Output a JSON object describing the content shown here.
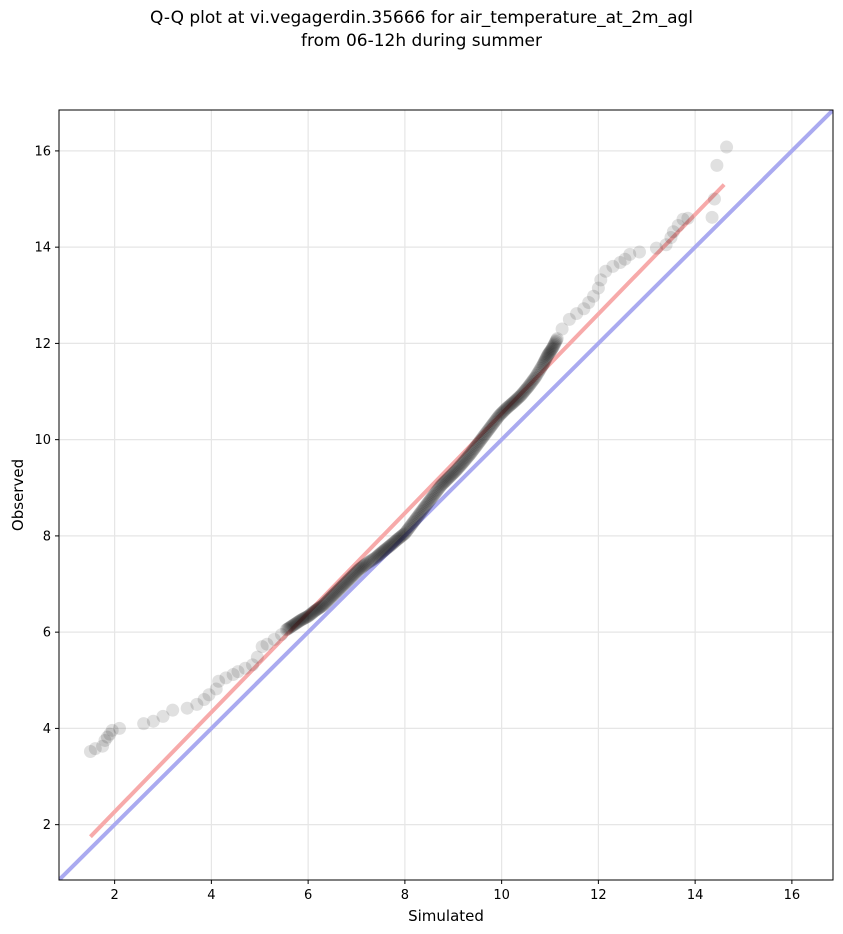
{
  "chart_data": {
    "type": "scatter",
    "title_line1": "Q-Q plot at vi.vegagerdin.35666 for air_temperature_at_2m_agl",
    "title_line2": "from 06-12h during summer",
    "xlabel": "Simulated",
    "ylabel": "Observed",
    "xlim": [
      0.85,
      16.85
    ],
    "ylim": [
      0.85,
      16.85
    ],
    "xticks": [
      2,
      4,
      6,
      8,
      10,
      12,
      14,
      16
    ],
    "yticks": [
      2,
      4,
      6,
      8,
      10,
      12,
      14,
      16
    ],
    "grid": true,
    "identity_line": {
      "color": "#aaaaf0",
      "from": [
        0.85,
        0.85
      ],
      "to": [
        16.85,
        16.85
      ]
    },
    "fit_line": {
      "color": "#f7aaaa",
      "from": [
        1.5,
        1.75
      ],
      "to": [
        14.6,
        15.3
      ]
    },
    "qq_points": [
      [
        1.5,
        3.52
      ],
      [
        1.6,
        3.58
      ],
      [
        1.75,
        3.63
      ],
      [
        1.8,
        3.75
      ],
      [
        1.85,
        3.82
      ],
      [
        1.9,
        3.88
      ],
      [
        1.95,
        3.96
      ],
      [
        2.1,
        4.0
      ],
      [
        2.6,
        4.1
      ],
      [
        2.8,
        4.15
      ],
      [
        3.0,
        4.25
      ],
      [
        3.2,
        4.38
      ],
      [
        3.5,
        4.42
      ],
      [
        3.7,
        4.5
      ],
      [
        3.85,
        4.6
      ],
      [
        3.95,
        4.7
      ],
      [
        4.1,
        4.82
      ],
      [
        4.15,
        4.98
      ],
      [
        4.3,
        5.05
      ],
      [
        4.45,
        5.12
      ],
      [
        4.55,
        5.18
      ],
      [
        4.7,
        5.25
      ],
      [
        4.85,
        5.32
      ],
      [
        4.95,
        5.48
      ],
      [
        5.05,
        5.7
      ],
      [
        5.15,
        5.75
      ],
      [
        5.3,
        5.85
      ],
      [
        5.45,
        5.95
      ],
      [
        5.55,
        6.05
      ],
      [
        5.7,
        6.15
      ],
      [
        5.85,
        6.25
      ],
      [
        6.0,
        6.33
      ],
      [
        6.15,
        6.45
      ],
      [
        6.3,
        6.55
      ],
      [
        6.45,
        6.7
      ],
      [
        6.6,
        6.85
      ],
      [
        6.75,
        7.0
      ],
      [
        6.9,
        7.15
      ],
      [
        7.05,
        7.3
      ],
      [
        7.2,
        7.42
      ],
      [
        7.4,
        7.55
      ],
      [
        7.55,
        7.68
      ],
      [
        7.7,
        7.8
      ],
      [
        7.85,
        7.93
      ],
      [
        8.0,
        8.05
      ],
      [
        8.15,
        8.25
      ],
      [
        8.3,
        8.45
      ],
      [
        8.45,
        8.65
      ],
      [
        8.6,
        8.85
      ],
      [
        8.75,
        9.05
      ],
      [
        8.9,
        9.2
      ],
      [
        9.05,
        9.35
      ],
      [
        9.2,
        9.52
      ],
      [
        9.35,
        9.7
      ],
      [
        9.5,
        9.9
      ],
      [
        9.65,
        10.1
      ],
      [
        9.8,
        10.3
      ],
      [
        9.95,
        10.5
      ],
      [
        10.1,
        10.65
      ],
      [
        10.25,
        10.78
      ],
      [
        10.4,
        10.92
      ],
      [
        10.55,
        11.1
      ],
      [
        10.7,
        11.3
      ],
      [
        10.85,
        11.55
      ],
      [
        10.95,
        11.75
      ],
      [
        11.05,
        11.9
      ],
      [
        11.15,
        12.1
      ],
      [
        11.25,
        12.3
      ],
      [
        11.4,
        12.5
      ],
      [
        11.55,
        12.62
      ],
      [
        11.7,
        12.72
      ],
      [
        11.8,
        12.85
      ],
      [
        11.9,
        12.98
      ],
      [
        12.0,
        13.15
      ],
      [
        12.05,
        13.32
      ],
      [
        12.15,
        13.5
      ],
      [
        12.3,
        13.6
      ],
      [
        12.45,
        13.68
      ],
      [
        12.55,
        13.75
      ],
      [
        12.65,
        13.85
      ],
      [
        12.85,
        13.9
      ],
      [
        13.2,
        13.98
      ],
      [
        13.4,
        14.05
      ],
      [
        13.5,
        14.2
      ],
      [
        13.55,
        14.32
      ],
      [
        13.65,
        14.45
      ],
      [
        13.75,
        14.58
      ],
      [
        13.85,
        14.6
      ],
      [
        14.35,
        14.62
      ],
      [
        14.4,
        15.0
      ],
      [
        14.45,
        15.7
      ],
      [
        14.65,
        16.08
      ]
    ]
  }
}
